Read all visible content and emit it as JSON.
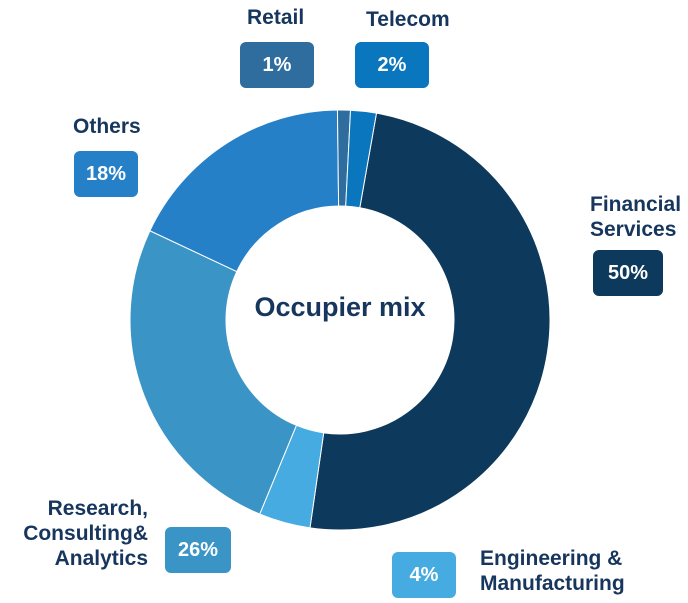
{
  "chart_data": {
    "type": "donut",
    "center_label": "Occupier mix",
    "categories": [
      "Financial Services",
      "Engineering & Manufacturing",
      "Research, Consulting& Analytics",
      "Others",
      "Retail",
      "Telecom"
    ],
    "values": [
      50,
      4,
      26,
      18,
      1,
      2
    ],
    "value_labels": [
      "50%",
      "4%",
      "26%",
      "18%",
      "1%",
      "2%"
    ],
    "colors": [
      "#0d3a5c",
      "#45abe0",
      "#3a95c6",
      "#2680c8",
      "#2f6d9e",
      "#0a76bd"
    ]
  }
}
